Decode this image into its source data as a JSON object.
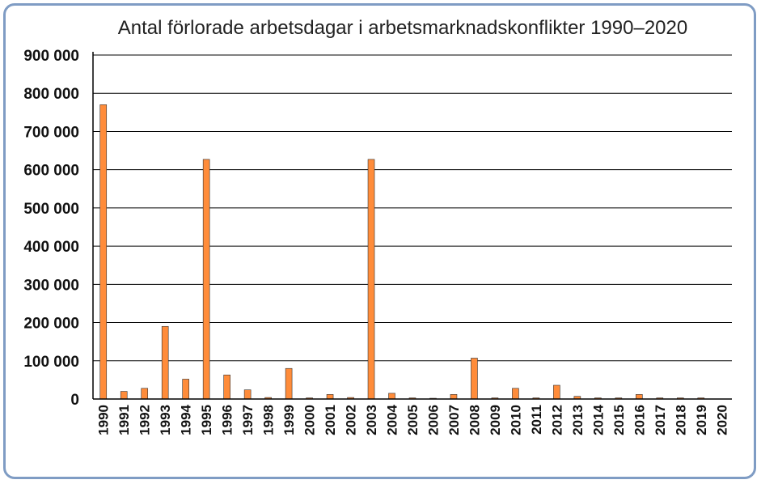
{
  "chart_data": {
    "type": "bar",
    "title": "Antal förlorade arbetsdagar i arbetsmarknadskonflikter 1990–2020",
    "xlabel": "",
    "ylabel": "",
    "categories": [
      "1990",
      "1991",
      "1992",
      "1993",
      "1994",
      "1995",
      "1996",
      "1997",
      "1998",
      "1999",
      "2000",
      "2001",
      "2002",
      "2003",
      "2004",
      "2005",
      "2006",
      "2007",
      "2008",
      "2009",
      "2010",
      "2011",
      "2012",
      "2013",
      "2014",
      "2015",
      "2016",
      "2017",
      "2018",
      "2019",
      "2020"
    ],
    "values": [
      770000,
      20000,
      28000,
      190000,
      52000,
      627000,
      63000,
      24000,
      4000,
      80000,
      3000,
      12000,
      4000,
      627000,
      15000,
      3000,
      2000,
      12000,
      107000,
      3000,
      28000,
      3000,
      36000,
      7000,
      3000,
      3000,
      12000,
      3000,
      3000,
      3000,
      0
    ],
    "ylim": [
      0,
      900000
    ],
    "yticks": [
      0,
      100000,
      200000,
      300000,
      400000,
      500000,
      600000,
      700000,
      800000,
      900000
    ],
    "ytick_labels": [
      "0",
      "100 000",
      "200 000",
      "300 000",
      "400 000",
      "500 000",
      "600 000",
      "700 000",
      "800 000",
      "900 000"
    ],
    "grid": true,
    "colors": {
      "bar": "#ff8c3a",
      "bar_edge": "#333333",
      "frame": "#7f9cc4",
      "grid": "#000000"
    }
  }
}
